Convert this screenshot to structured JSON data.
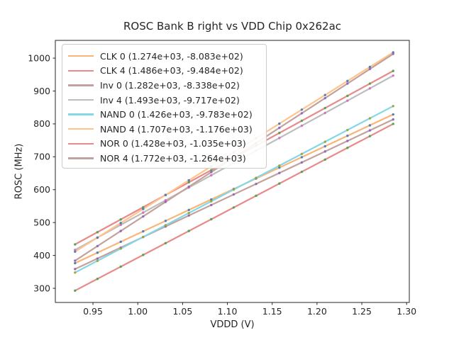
{
  "window": {
    "background": "#ffffff"
  },
  "chart_data": {
    "type": "scatter",
    "title": "ROSC Bank B right vs VDD Chip 0x262ac",
    "xlabel": "VDDD (V)",
    "ylabel": "ROSC (MHz)",
    "xlim": [
      0.908,
      1.303
    ],
    "ylim": [
      257,
      1054
    ],
    "xticks": [
      "0.95",
      "1.00",
      "1.05",
      "1.10",
      "1.15",
      "1.20",
      "1.25",
      "1.30"
    ],
    "yticks": [
      "300",
      "400",
      "500",
      "600",
      "700",
      "800",
      "900",
      "1000"
    ],
    "grid": false,
    "legend_position": "upper left",
    "spine_color": "#262626",
    "x": [
      0.93,
      0.955,
      0.981,
      1.006,
      1.031,
      1.057,
      1.082,
      1.107,
      1.132,
      1.158,
      1.183,
      1.209,
      1.234,
      1.259,
      1.285
    ],
    "series": [
      {
        "id": "clk-0",
        "name": "CLK 0",
        "legend_label": "CLK 0 (1.274e+03, -8.083e+02)",
        "fit_slope": 1274.0,
        "fit_intercept": -808.3,
        "line_color": "#FBB478",
        "marker_color": "#4A7EB5",
        "y": [
          376.5,
          408.4,
          441.5,
          473.3,
          505.2,
          538.3,
          570.2,
          602.0,
          633.9,
          667.0,
          698.8,
          731.9,
          763.8,
          795.6,
          828.8
        ]
      },
      {
        "id": "clk-4",
        "name": "CLK 4",
        "legend_label": "CLK 4 (1.486e+03, -9.484e+02)",
        "fit_slope": 1486.0,
        "fit_intercept": -948.4,
        "line_color": "#E98A8A",
        "marker_color": "#4CA64C",
        "y": [
          433.6,
          470.7,
          509.4,
          546.5,
          583.7,
          622.3,
          659.4,
          696.6,
          733.8,
          772.4,
          809.5,
          848.2,
          885.3,
          922.5,
          961.1
        ]
      },
      {
        "id": "inv-0",
        "name": "Inv 0",
        "legend_label": "Inv 0 (1.282e+03, -8.338e+02)",
        "fit_slope": 1282.0,
        "fit_intercept": -833.8,
        "line_color": "#C2A29C",
        "marker_color": "#9467BD",
        "y": [
          358.5,
          390.5,
          423.9,
          455.9,
          488.0,
          521.3,
          553.3,
          585.4,
          617.4,
          650.7,
          682.8,
          716.1,
          748.2,
          780.2,
          813.6
        ]
      },
      {
        "id": "inv-4",
        "name": "Inv 4",
        "legend_label": "Inv 4 (1.493e+03, -9.717e+02)",
        "fit_slope": 1493.0,
        "fit_intercept": -971.7,
        "line_color": "#BDBDBD",
        "marker_color": "#D46FC3",
        "y": [
          416.8,
          454.1,
          492.9,
          530.3,
          567.6,
          606.4,
          643.7,
          681.1,
          718.4,
          757.2,
          794.5,
          833.3,
          870.7,
          908.0,
          946.8
        ]
      },
      {
        "id": "nand-0",
        "name": "NAND 0",
        "legend_label": "NAND 0 (1.426e+03, -9.783e+02)",
        "fit_slope": 1426.0,
        "fit_intercept": -978.3,
        "line_color": "#83D7E6",
        "marker_color": "#9FA437",
        "y": [
          347.9,
          383.5,
          420.6,
          456.3,
          491.9,
          529.0,
          564.6,
          600.3,
          635.9,
          673.0,
          708.7,
          745.7,
          781.4,
          817.0,
          854.1
        ]
      },
      {
        "id": "nand-4",
        "name": "NAND 4",
        "legend_label": "NAND 4 (1.707e+03, -1.176e+03)",
        "fit_slope": 1707.0,
        "fit_intercept": -1176.0,
        "line_color": "#FFC38B",
        "marker_color": "#4A7EB5",
        "y": [
          411.5,
          454.2,
          498.6,
          541.2,
          583.9,
          628.3,
          671.0,
          713.6,
          756.3,
          800.7,
          843.4,
          887.8,
          930.5,
          973.2,
          1017.5
        ]
      },
      {
        "id": "nor-0",
        "name": "NOR 0",
        "legend_label": "NOR 0 (1.428e+03, -1.035e+03)",
        "fit_slope": 1428.0,
        "fit_intercept": -1035.0,
        "line_color": "#E98A8A",
        "marker_color": "#4CA64C",
        "y": [
          293.0,
          328.7,
          365.9,
          401.6,
          437.3,
          474.4,
          510.1,
          545.8,
          581.5,
          618.6,
          654.3,
          691.5,
          727.2,
          762.9,
          800.0
        ]
      },
      {
        "id": "nor-4",
        "name": "NOR 4",
        "legend_label": "NOR 4 (1.772e+03, -1.264e+03)",
        "fit_slope": 1772.0,
        "fit_intercept": -1264.0,
        "line_color": "#C2A29C",
        "marker_color": "#9467BD",
        "y": [
          384.0,
          428.3,
          474.3,
          518.6,
          562.9,
          609.0,
          653.3,
          697.6,
          741.9,
          788.0,
          832.3,
          878.3,
          922.6,
          966.9,
          1013.0
        ]
      }
    ]
  }
}
